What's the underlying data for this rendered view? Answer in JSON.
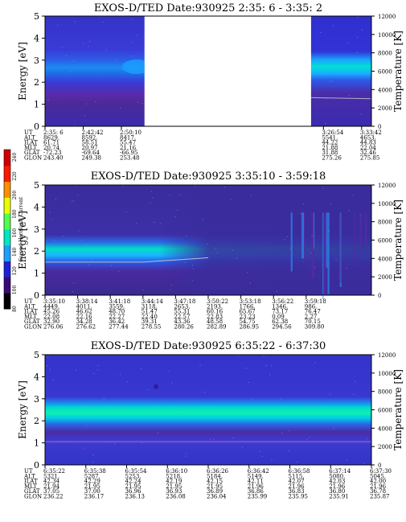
{
  "colorbar": {
    "label": "Second Harmonic Current",
    "ticks": [
      "240",
      "220",
      "200",
      "180",
      "160",
      "140",
      "120",
      "100",
      "80"
    ],
    "colors": [
      "#000000",
      "#3a0a78",
      "#2020d8",
      "#1ea0ff",
      "#00e8c0",
      "#50ff50",
      "#e8ff00",
      "#ff9000",
      "#ff1800",
      "#d00000"
    ]
  },
  "chart_data": [
    {
      "type": "heatmap",
      "title": "EXOS-D/TED   Date:930925  2:35: 6 - 3:35: 2",
      "ylabel": "Energy [eV]",
      "y2label": "Temperature [K]",
      "ylim": [
        0,
        5
      ],
      "y2lim": [
        0,
        12000
      ],
      "yticks": [
        "5",
        "4",
        "3",
        "2",
        "1",
        "0"
      ],
      "y2ticks": [
        "12000",
        "10000",
        "8000",
        "6000",
        "4000",
        "2000",
        "0"
      ],
      "row_labels": [
        "UT",
        "ALT",
        "ILAT",
        "MLT",
        "GLAT",
        "GLON"
      ],
      "columns": [
        {
          "pos": 0.0,
          "vals": [
            "2:35: 6",
            "8629.",
            "61.71",
            "20.74",
            "-72.23",
            "243.40"
          ]
        },
        {
          "pos": 0.117,
          "vals": [
            "2:42:42",
            "8592.",
            "58.51",
            "20.97",
            "-69.64",
            "249.38"
          ]
        },
        {
          "pos": 0.234,
          "vals": [
            "2:50:10",
            "8417.",
            "55.47",
            "21.16",
            "-66.95",
            "253.48"
          ]
        },
        {
          "pos": 0.853,
          "vals": [
            "3:26:54",
            "5541.",
            "44.22",
            "21.88",
            "31.88",
            "275.26"
          ]
        },
        {
          "pos": 0.97,
          "vals": [
            "3:33:42",
            "4653.",
            "44.83",
            "22.04",
            "32.46",
            "275.85"
          ]
        }
      ],
      "data_gap": [
        0.305,
        0.8
      ],
      "band_center_eV": 2.4
    },
    {
      "type": "heatmap",
      "title": "EXOS-D/TED   Date:930925  3:35:10 - 3:59:18",
      "ylabel": "Energy [eV]",
      "y2label": "Temperature [K]",
      "ylim": [
        0,
        5
      ],
      "y2lim": [
        0,
        12000
      ],
      "yticks": [
        "5",
        "4",
        "3",
        "2",
        "1",
        "0"
      ],
      "y2ticks": [
        "12000",
        "10000",
        "8000",
        "6000",
        "4000",
        "2000",
        "0"
      ],
      "row_labels": [
        "UT",
        "ALT",
        "ILAT",
        "MLT",
        "GLAT",
        "GLON"
      ],
      "columns": [
        {
          "pos": 0.0,
          "vals": [
            "3:35:10",
            "4449.",
            "45.26",
            "22.08",
            "32.90",
            "276.06"
          ]
        },
        {
          "pos": 0.1,
          "vals": [
            "3:38:14",
            "4011.",
            "46.62",
            "22.16",
            "34.28",
            "276.62"
          ]
        },
        {
          "pos": 0.2,
          "vals": [
            "3:41:18",
            "3559.",
            "48.70",
            "22.27",
            "36.42",
            "277.44"
          ]
        },
        {
          "pos": 0.3,
          "vals": [
            "3:44:14",
            "3118.",
            "51.47",
            "22.40",
            "39.31",
            "278.55"
          ]
        },
        {
          "pos": 0.4,
          "vals": [
            "3:47:18",
            "2653.",
            "55.31",
            "22.57",
            "43.36",
            "280.26"
          ]
        },
        {
          "pos": 0.5,
          "vals": [
            "3:50:22",
            "2193.",
            "60.16",
            "22.83",
            "48.58",
            "282.89"
          ]
        },
        {
          "pos": 0.6,
          "vals": [
            "3:53:18",
            "1766.",
            "65.67",
            "23.23",
            "54.75",
            "286.95"
          ]
        },
        {
          "pos": 0.7,
          "vals": [
            "3:56:22",
            "1346.",
            "73.17",
            "0.09",
            "62.38",
            "294.56"
          ]
        },
        {
          "pos": 0.8,
          "vals": [
            "3:59:18",
            "986.",
            "76.47",
            "2.27",
            "70.15",
            "309.80"
          ]
        }
      ],
      "band_center_eV": 1.9
    },
    {
      "type": "heatmap",
      "title": "EXOS-D/TED   Date:930925  6:35:22 - 6:37:30",
      "ylabel": "Energy [eV]",
      "y2label": "Temperature [K]",
      "ylim": [
        0,
        5
      ],
      "y2lim": [
        0,
        12000
      ],
      "yticks": [
        "5",
        "4",
        "3",
        "2",
        "1",
        "0"
      ],
      "y2ticks": [
        "12000",
        "10000",
        "8000",
        "6000",
        "4000",
        "2000",
        "0"
      ],
      "row_labels": [
        "UT",
        "ALT",
        "ILAT",
        "MLT",
        "GLAT",
        "GLON"
      ],
      "columns": [
        {
          "pos": 0.0,
          "vals": [
            "6:35:22",
            "5321.",
            "42.34",
            "21.94",
            "37.05",
            "236.22"
          ]
        },
        {
          "pos": 0.125,
          "vals": [
            "6:35:38",
            "5287.",
            "42.29",
            "21.95",
            "37.00",
            "236.17"
          ]
        },
        {
          "pos": 0.25,
          "vals": [
            "6:35:54",
            "5253.",
            "42.24",
            "21.95",
            "36.96",
            "236.13"
          ]
        },
        {
          "pos": 0.375,
          "vals": [
            "6:36:10",
            "5218.",
            "42.19",
            "21.95",
            "36.93",
            "236.08"
          ]
        },
        {
          "pos": 0.5,
          "vals": [
            "6:36:26",
            "5184.",
            "42.15",
            "21.95",
            "36.89",
            "236.04"
          ]
        },
        {
          "pos": 0.625,
          "vals": [
            "6:36:42",
            "5149.",
            "42.11",
            "21.96",
            "36.86",
            "235.99"
          ]
        },
        {
          "pos": 0.75,
          "vals": [
            "6:36:58",
            "5115.",
            "42.07",
            "21.96",
            "36.83",
            "235.95"
          ]
        },
        {
          "pos": 0.875,
          "vals": [
            "6:37:14",
            "5080.",
            "42.03",
            "21.96",
            "36.80",
            "235.91"
          ]
        },
        {
          "pos": 1.0,
          "vals": [
            "6:37:30",
            "5045.",
            "42.00",
            "21.96",
            "36.78",
            "235.87"
          ]
        }
      ],
      "band_center_eV": 2.2
    }
  ]
}
